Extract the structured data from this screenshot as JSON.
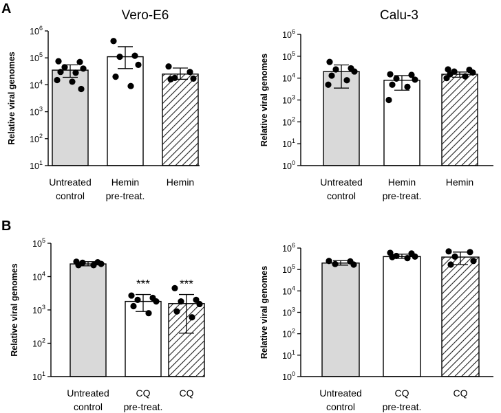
{
  "panel_labels": [
    "A",
    "B"
  ],
  "chart_data": [
    {
      "type": "bar",
      "panel": "A",
      "title": "Vero-E6",
      "ylabel": "Relative viral genomes",
      "yscale": "log",
      "ylim_exp": [
        1,
        6
      ],
      "categories": [
        [
          "Untreated",
          "control"
        ],
        [
          "Hemin",
          "pre-treat."
        ],
        [
          "Hemin"
        ]
      ],
      "fills": [
        "gray",
        "white",
        "hatch"
      ],
      "means": [
        35000,
        110000,
        25000
      ],
      "err_low": [
        19000,
        40000,
        16000
      ],
      "err_high": [
        55000,
        260000,
        42000
      ],
      "points": [
        [
          75000,
          70000,
          45000,
          40000,
          30000,
          28000,
          15000,
          13000,
          7000
        ],
        [
          420000,
          120000,
          110000,
          55000,
          20000,
          9000
        ],
        [
          48000,
          30000,
          18000,
          17000,
          16000
        ]
      ],
      "significance": [
        "",
        "",
        ""
      ]
    },
    {
      "type": "bar",
      "panel": "A",
      "title": "Calu-3",
      "ylabel": "Relative viral genomes",
      "yscale": "log",
      "ylim_exp": [
        0,
        6
      ],
      "categories": [
        [
          "Untreated",
          "control"
        ],
        [
          "Hemin",
          "pre-treat."
        ],
        [
          "Hemin"
        ]
      ],
      "fills": [
        "gray",
        "white",
        "hatch"
      ],
      "means": [
        20000,
        8000,
        15000
      ],
      "err_low": [
        3500,
        2800,
        11000
      ],
      "err_high": [
        40000,
        13000,
        19000
      ],
      "points": [
        [
          55000,
          28000,
          25000,
          20000,
          13000,
          8000,
          5000
        ],
        [
          15000,
          14000,
          9500,
          8500,
          5000,
          4000,
          1000
        ],
        [
          25000,
          24000,
          20000,
          18000,
          15000,
          12000,
          10000
        ]
      ],
      "significance": [
        "",
        "",
        ""
      ]
    },
    {
      "type": "bar",
      "panel": "B",
      "title": "",
      "ylabel": "Relative viral genomes",
      "yscale": "log",
      "ylim_exp": [
        1,
        5
      ],
      "categories": [
        [
          "Untreated",
          "control"
        ],
        [
          "CQ",
          "pre-treat."
        ],
        [
          "CQ"
        ]
      ],
      "fills": [
        "gray",
        "white",
        "hatch"
      ],
      "means": [
        24000,
        1800,
        1550
      ],
      "err_low": [
        21000,
        900,
        200
      ],
      "err_high": [
        28000,
        2900,
        2900
      ],
      "points": [
        [
          28000,
          27000,
          26000,
          24000,
          22000,
          22000
        ],
        [
          2700,
          2300,
          2000,
          1800,
          1300,
          800
        ],
        [
          4500,
          2000,
          1800,
          1500,
          900,
          600
        ]
      ],
      "significance": [
        "",
        "***",
        "***"
      ]
    },
    {
      "type": "bar",
      "panel": "B",
      "title": "",
      "ylabel": "Relative viral genomes",
      "yscale": "log",
      "ylim_exp": [
        0,
        6
      ],
      "categories": [
        [
          "Untreated",
          "control"
        ],
        [
          "CQ",
          "pre-treat."
        ],
        [
          "CQ"
        ]
      ],
      "fills": [
        "gray",
        "white",
        "hatch"
      ],
      "means": [
        200000,
        400000,
        380000
      ],
      "err_low": [
        160000,
        330000,
        170000
      ],
      "err_high": [
        260000,
        520000,
        650000
      ],
      "points": [
        [
          250000,
          240000,
          180000,
          170000
        ],
        [
          600000,
          560000,
          430000,
          400000,
          380000,
          340000
        ],
        [
          700000,
          650000,
          400000,
          250000,
          170000
        ]
      ],
      "significance": [
        "",
        "",
        ""
      ]
    }
  ]
}
